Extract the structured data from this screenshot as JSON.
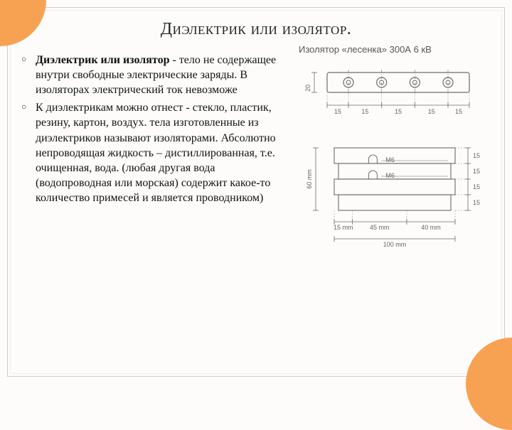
{
  "accent_color": "#f7a253",
  "heading": "Диэлектрик или изолятор.",
  "caption": "Изолятор «лесенка» 300А 6 кВ",
  "bullets": [
    "Диэлектрик или изолятор - тело не содержащее внутри свободные электрические заряды. В изоляторах электрический ток невозможе",
    "    К диэлектрикам можно отнест - стекло, пластик, резину, картон, воздух. тела изготовленные из диэлектриков называют изоляторами. Абсолютно непроводящая жидкость – дистиллированная, т.е. очищенная, вода. (любая другая вода (водопроводная или морская) содержит какое-то количество примесей и является проводником)"
  ],
  "bold_lead": "Диэлектрик или изолятор",
  "top_view": {
    "height_label": "20",
    "segment_labels": [
      "15",
      "15",
      "15",
      "15",
      "15"
    ],
    "hole_count": 4,
    "stroke": "#6b6b6b",
    "label_fontsize": 9
  },
  "side_view": {
    "overall_height_label": "60 mm",
    "row_heights": [
      "15",
      "15",
      "15",
      "15"
    ],
    "bottom_widths": [
      "15 mm",
      "45 mm",
      "40 mm"
    ],
    "overall_width_label": "100 mm",
    "screw_labels": [
      "M6",
      "M6"
    ],
    "stroke": "#6b6b6b",
    "label_fontsize": 9
  }
}
